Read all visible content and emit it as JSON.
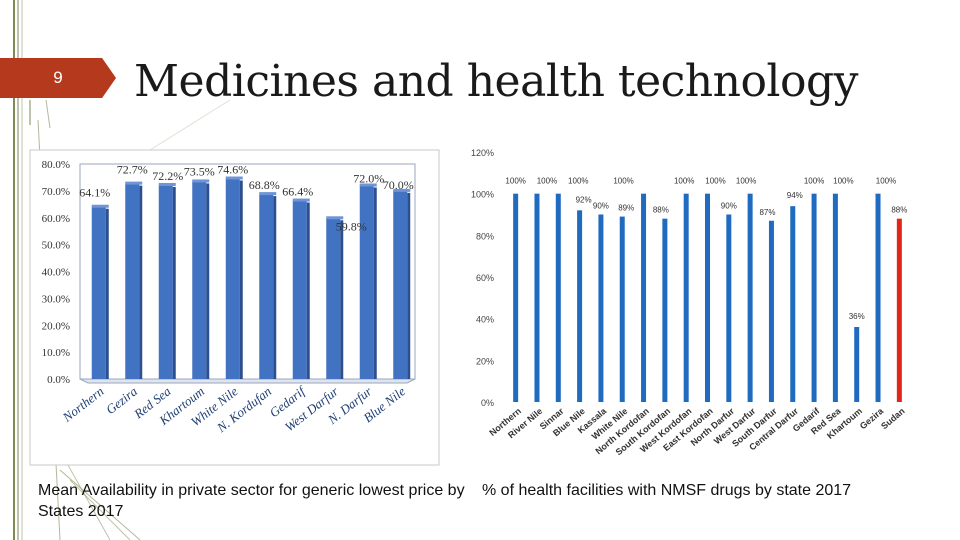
{
  "slide": {
    "number": "9",
    "title": "Medicines and health technology"
  },
  "captions": {
    "left": "Mean Availability in private sector for generic lowest price by States 2017",
    "right": "% of health facilities with NMSF drugs by state 2017"
  },
  "colors": {
    "accent": "#b5391c",
    "bar_left": "#4272c2",
    "bar_right": "#1f6bc0",
    "bar_highlight": "#e0261a",
    "frame_green": "#7d8a55"
  },
  "chart_data": [
    {
      "type": "bar",
      "title": "",
      "categories": [
        "Northern",
        "Gezira",
        "Red Sea",
        "Khartoum",
        "White Nile",
        "N. Kordufan",
        "Gedarif",
        "West Darfur",
        "N. Darfur",
        "Blue Nile"
      ],
      "values": [
        64.1,
        72.7,
        72.2,
        73.5,
        74.6,
        68.8,
        66.4,
        59.8,
        72.0,
        70.0
      ],
      "labels": [
        "64.1%",
        "72.7%",
        "72.2%",
        "73.5%",
        "74.6%",
        "68.8%",
        "66.4%",
        "59.8%",
        "72.0%",
        "70.0%"
      ],
      "ylim": [
        0,
        80
      ],
      "yticks": [
        "0.0%",
        "10.0%",
        "20.0%",
        "30.0%",
        "40.0%",
        "50.0%",
        "60.0%",
        "70.0%",
        "80.0%"
      ],
      "grid": false
    },
    {
      "type": "bar",
      "title": "",
      "categories": [
        "Northern",
        "River Nile",
        "Sinnar",
        "Blue Nile",
        "Kassala",
        "White Nile",
        "North Kordofan",
        "South Kordofan",
        "West Kordofan",
        "East Kordofan",
        "North Darfur",
        "West Darfur",
        "South Darfur",
        "Central Darfur",
        "Gedarif",
        "Red Sea",
        "Khartoum",
        "Gezira",
        "Sudan"
      ],
      "values": [
        100,
        100,
        100,
        92,
        90,
        89,
        100,
        88,
        100,
        100,
        90,
        100,
        87,
        94,
        100,
        100,
        36,
        100,
        88
      ],
      "labels": [
        "100%",
        "100%",
        "100%",
        "92%",
        "90%",
        "89%",
        "100%",
        "88%",
        "100%",
        "100%",
        "90%",
        "100%",
        "87%",
        "94%",
        "100%",
        "100%",
        "36%",
        "100%",
        "88%"
      ],
      "highlight": "Sudan",
      "ylim": [
        0,
        120
      ],
      "yticks": [
        "0%",
        "20%",
        "40%",
        "60%",
        "80%",
        "100%",
        "120%"
      ],
      "grid": false
    }
  ]
}
